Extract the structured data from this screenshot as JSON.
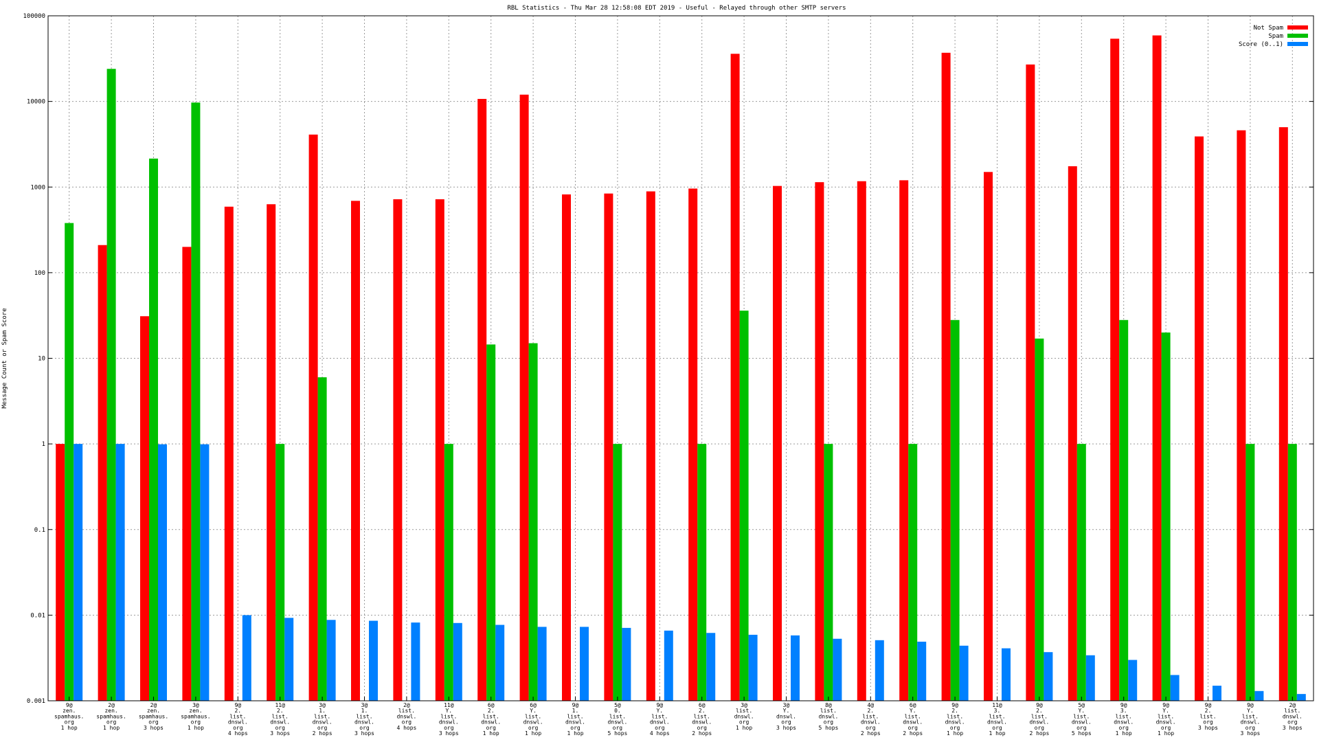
{
  "chart_data": {
    "type": "bar",
    "title": "RBL Statistics - Thu Mar 28 12:58:08 EDT 2019 - Useful - Relayed through other SMTP servers",
    "xlabel": "",
    "ylabel": "Message Count or Spam Score",
    "yscale": "log",
    "ylim": [
      0.001,
      100000
    ],
    "yticks": [
      "100000",
      "10000",
      "1000",
      "100",
      "10",
      "1",
      "0.1",
      "0.01",
      "0.001"
    ],
    "grid": true,
    "legend_position": "top-right",
    "colors": {
      "not_spam": "#ff0000",
      "spam": "#00c000",
      "score": "#0080ff"
    },
    "categories": [
      [
        "9@",
        "zen.",
        "spamhaus.",
        "org",
        "1 hop"
      ],
      [
        "2@",
        "zen.",
        "spamhaus.",
        "org",
        "1 hop"
      ],
      [
        "2@",
        "zen.",
        "spamhaus.",
        "org",
        "3 hops"
      ],
      [
        "3@",
        "zen.",
        "spamhaus.",
        "org",
        "1 hop"
      ],
      [
        "9@",
        "2.",
        "list.",
        "dnswl.",
        "org",
        "4 hops"
      ],
      [
        "11@",
        "2.",
        "list.",
        "dnswl.",
        "org",
        "3 hops"
      ],
      [
        "3@",
        "1.",
        "list.",
        "dnswl.",
        "org",
        "2 hops"
      ],
      [
        "3@",
        "1.",
        "list.",
        "dnswl.",
        "org",
        "3 hops"
      ],
      [
        "2@",
        "list.",
        "dnswl.",
        "org",
        "4 hops"
      ],
      [
        "11@",
        "Y.",
        "list.",
        "dnswl.",
        "org",
        "3 hops"
      ],
      [
        "6@",
        "2.",
        "list.",
        "dnswl.",
        "org",
        "1 hop"
      ],
      [
        "6@",
        "Y.",
        "list.",
        "dnswl.",
        "org",
        "1 hop"
      ],
      [
        "9@",
        "1.",
        "list.",
        "dnswl.",
        "org",
        "1 hop"
      ],
      [
        "5@",
        "0.",
        "list.",
        "dnswl.",
        "org",
        "5 hops"
      ],
      [
        "9@",
        "Y.",
        "list.",
        "dnswl.",
        "org",
        "4 hops"
      ],
      [
        "6@",
        "2.",
        "list.",
        "dnswl.",
        "org",
        "2 hops"
      ],
      [
        "3@",
        "list.",
        "dnswl.",
        "org",
        "1 hop"
      ],
      [
        "3@",
        "Y.",
        "dnswl.",
        "org",
        "3 hops"
      ],
      [
        "8@",
        "list.",
        "dnswl.",
        "org",
        "5 hops"
      ],
      [
        "4@",
        "2.",
        "list.",
        "dnswl.",
        "org",
        "2 hops"
      ],
      [
        "6@",
        "Y.",
        "list.",
        "dnswl.",
        "org",
        "2 hops"
      ],
      [
        "9@",
        "2.",
        "list.",
        "dnswl.",
        "org",
        "1 hop"
      ],
      [
        "11@",
        "3.",
        "list.",
        "dnswl.",
        "org",
        "1 hop"
      ],
      [
        "9@",
        "2.",
        "list.",
        "dnswl.",
        "org",
        "2 hops"
      ],
      [
        "5@",
        "Y.",
        "list.",
        "dnswl.",
        "org",
        "5 hops"
      ],
      [
        "9@",
        "3.",
        "list.",
        "dnswl.",
        "org",
        "1 hop"
      ],
      [
        "9@",
        "Y.",
        "list.",
        "dnswl.",
        "org",
        "1 hop"
      ],
      [
        "9@",
        "2.",
        "list.",
        "org",
        "3 hops"
      ],
      [
        "9@",
        "Y.",
        "list.",
        "dnswl.",
        "org",
        "3 hops"
      ],
      [
        "2@",
        "list.",
        "dnswl.",
        "org",
        "3 hops"
      ]
    ],
    "series": [
      {
        "name": "Not Spam",
        "values": [
          1,
          210,
          31,
          200,
          590,
          630,
          4100,
          690,
          720,
          720,
          10700,
          12000,
          820,
          840,
          890,
          960,
          36000,
          1030,
          1140,
          1170,
          1200,
          37000,
          1500,
          27000,
          1750,
          54000,
          59000,
          3900,
          4600,
          5000
        ]
      },
      {
        "name": "Spam",
        "values": [
          380,
          24000,
          2150,
          9700,
          null,
          1,
          6,
          null,
          null,
          1,
          14.5,
          15,
          null,
          1,
          null,
          1,
          36,
          null,
          1,
          null,
          1,
          28,
          null,
          17,
          1,
          28,
          20,
          null,
          1,
          1
        ]
      },
      {
        "name": "Score (0..1)",
        "values": [
          1,
          1,
          0.99,
          0.99,
          0.01,
          0.0093,
          0.0088,
          0.0086,
          0.0082,
          0.0081,
          0.0077,
          0.0073,
          0.0073,
          0.0071,
          0.0066,
          0.0062,
          0.0059,
          0.0058,
          0.0053,
          0.0051,
          0.0049,
          0.0044,
          0.0041,
          0.0037,
          0.0034,
          0.003,
          0.002,
          0.0015,
          0.0013,
          0.0012
        ]
      }
    ]
  }
}
